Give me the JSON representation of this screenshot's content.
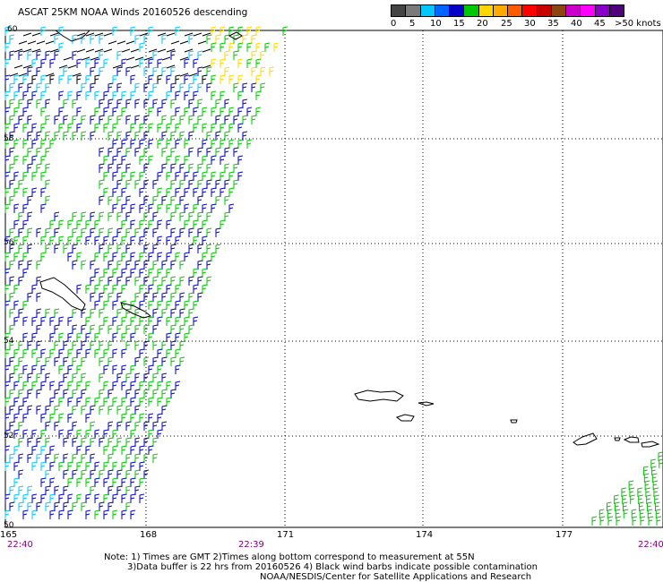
{
  "title": "ASCAT 25KM NOAA Winds 20160526 descending",
  "legend": {
    "colors": [
      "#444444",
      "#7a7a7a",
      "#00c8ff",
      "#0064ff",
      "#0000c8",
      "#00c800",
      "#ffd700",
      "#ffaa00",
      "#ff5a00",
      "#ff0000",
      "#c80000",
      "#8b4513",
      "#cc00cc",
      "#ff00ff",
      "#8a00c8",
      "#50007a"
    ],
    "labels": [
      "0",
      "5",
      "10",
      "15",
      "20",
      "25",
      "30",
      "35",
      "40",
      "45",
      ">50 knots"
    ]
  },
  "latitudes": [
    "60",
    "58",
    "56",
    "54",
    "52",
    "50"
  ],
  "longitudes": [
    "165",
    "168",
    "171",
    "174",
    "177"
  ],
  "times": {
    "left": "22:40",
    "middle": "22:39",
    "right": "22:40"
  },
  "notes": {
    "line1": "Note: 1) Times are GMT 2)Times along bottom correspond to measurement at 55N",
    "line2": "3)Data buffer is 22 hrs from 20160526 4) Black wind barbs indicate possible contamination",
    "line3": "NOAA/NESDIS/Center for Satellite Applications and Research"
  },
  "wind_colors": {
    "black": "#000000",
    "cyan": "#00c8ff",
    "blue": "#0000c8",
    "green": "#00c800",
    "yellow": "#ffd700"
  }
}
